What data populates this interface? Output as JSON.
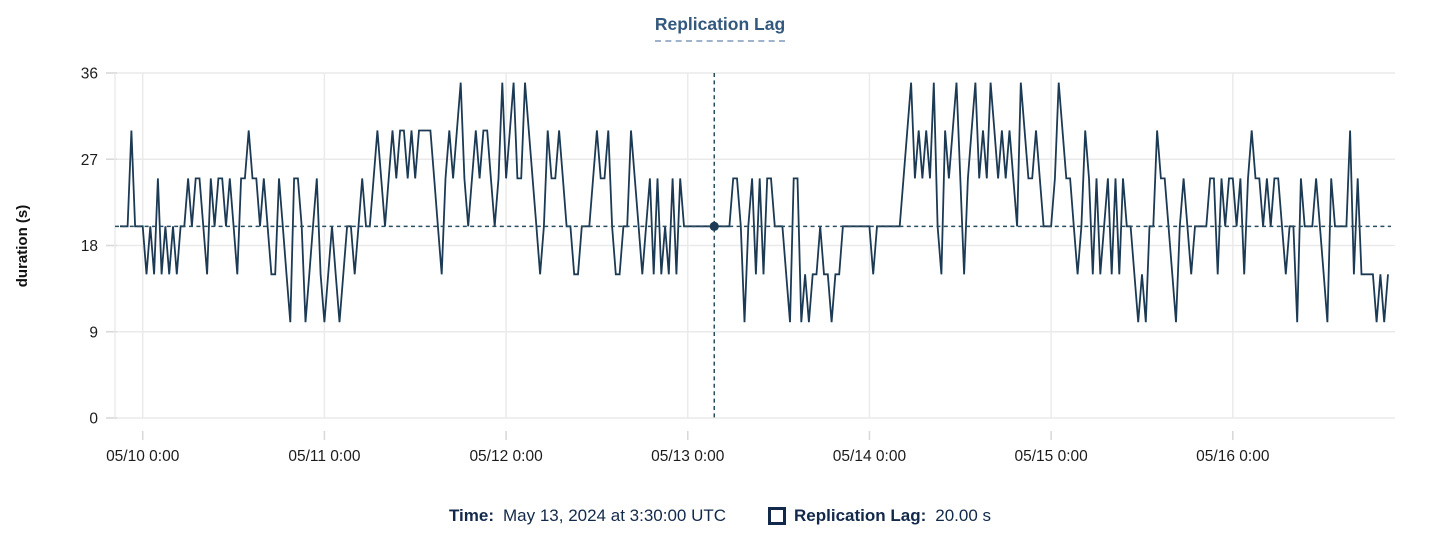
{
  "title": "Replication Lag",
  "y_axis": {
    "label": "duration (s)"
  },
  "tooltip": {
    "time_label": "Time:",
    "time_value": "May 13, 2024 at 3:30:00 UTC",
    "series_label": "Replication Lag:",
    "series_value": "20.00 s"
  },
  "colors": {
    "series_line": "#1c3a54",
    "crosshair": "#2a4d60",
    "title_text": "#33587d",
    "footer_text": "#13294b",
    "gridline": "#eaeaea"
  },
  "chart_data": {
    "type": "line",
    "title": "Replication Lag",
    "xlabel": "",
    "ylabel": "duration (s)",
    "unit": "s",
    "ylim": [
      0,
      36
    ],
    "y_ticks": [
      0,
      9,
      18,
      27,
      36
    ],
    "grid": true,
    "x_tick_labels": [
      "05/10 0:00",
      "05/11 0:00",
      "05/12 0:00",
      "05/13 0:00",
      "05/14 0:00",
      "05/15 0:00",
      "05/16 0:00"
    ],
    "x_tick_indices": [
      6,
      54,
      102,
      150,
      198,
      246,
      294
    ],
    "interval_minutes": 30,
    "reference_line_y": 20,
    "selected_point": {
      "index": 157,
      "time": "May 13, 2024 at 3:30:00 UTC",
      "value": 20.0
    },
    "values": [
      20,
      20,
      20,
      30,
      20,
      20,
      20,
      15,
      20,
      15,
      25,
      15,
      20,
      15,
      20,
      15,
      20,
      20,
      25,
      20,
      25,
      25,
      20,
      15,
      25,
      20,
      25,
      25,
      20,
      25,
      20,
      15,
      25,
      25,
      30,
      25,
      25,
      20,
      25,
      20,
      15,
      15,
      25,
      20,
      15,
      10,
      25,
      25,
      20,
      10,
      15,
      20,
      25,
      15,
      10,
      15,
      20,
      15,
      10,
      15,
      20,
      20,
      15,
      20,
      25,
      20,
      20,
      25,
      30,
      25,
      20,
      25,
      30,
      25,
      30,
      30,
      25,
      30,
      25,
      30,
      30,
      30,
      30,
      25,
      20,
      15,
      25,
      30,
      25,
      30,
      35,
      25,
      20,
      25,
      30,
      25,
      30,
      30,
      25,
      20,
      25,
      35,
      25,
      30,
      35,
      25,
      25,
      35,
      30,
      25,
      20,
      15,
      20,
      30,
      25,
      25,
      30,
      25,
      20,
      20,
      15,
      15,
      20,
      20,
      20,
      25,
      30,
      25,
      25,
      30,
      20,
      15,
      15,
      20,
      20,
      30,
      25,
      20,
      15,
      20,
      25,
      15,
      25,
      15,
      20,
      15,
      25,
      15,
      25,
      20,
      20,
      20,
      20,
      20,
      20,
      20,
      20,
      20,
      20,
      20,
      20,
      20,
      25,
      25,
      20,
      10,
      20,
      25,
      15,
      25,
      15,
      25,
      25,
      20,
      20,
      20,
      15,
      10,
      25,
      25,
      10,
      15,
      10,
      15,
      15,
      20,
      15,
      15,
      10,
      15,
      15,
      20,
      20,
      20,
      20,
      20,
      20,
      20,
      20,
      15,
      20,
      20,
      20,
      20,
      20,
      20,
      20,
      25,
      30,
      35,
      25,
      30,
      25,
      30,
      25,
      35,
      20,
      15,
      30,
      25,
      30,
      35,
      25,
      15,
      25,
      30,
      35,
      25,
      30,
      25,
      35,
      30,
      25,
      30,
      25,
      30,
      25,
      20,
      35,
      30,
      25,
      25,
      30,
      25,
      20,
      20,
      20,
      25,
      35,
      30,
      25,
      25,
      20,
      15,
      20,
      30,
      25,
      15,
      25,
      15,
      20,
      25,
      15,
      25,
      15,
      25,
      20,
      20,
      15,
      10,
      15,
      10,
      20,
      20,
      30,
      25,
      25,
      20,
      15,
      10,
      20,
      25,
      20,
      15,
      20,
      20,
      20,
      20,
      25,
      25,
      15,
      25,
      20,
      25,
      25,
      20,
      25,
      15,
      25,
      30,
      25,
      25,
      20,
      25,
      20,
      25,
      25,
      20,
      15,
      20,
      20,
      10,
      25,
      20,
      20,
      20,
      25,
      20,
      15,
      10,
      25,
      20,
      20,
      20,
      20,
      30,
      15,
      25,
      15,
      15,
      15,
      15,
      10,
      15,
      10,
      15
    ]
  }
}
